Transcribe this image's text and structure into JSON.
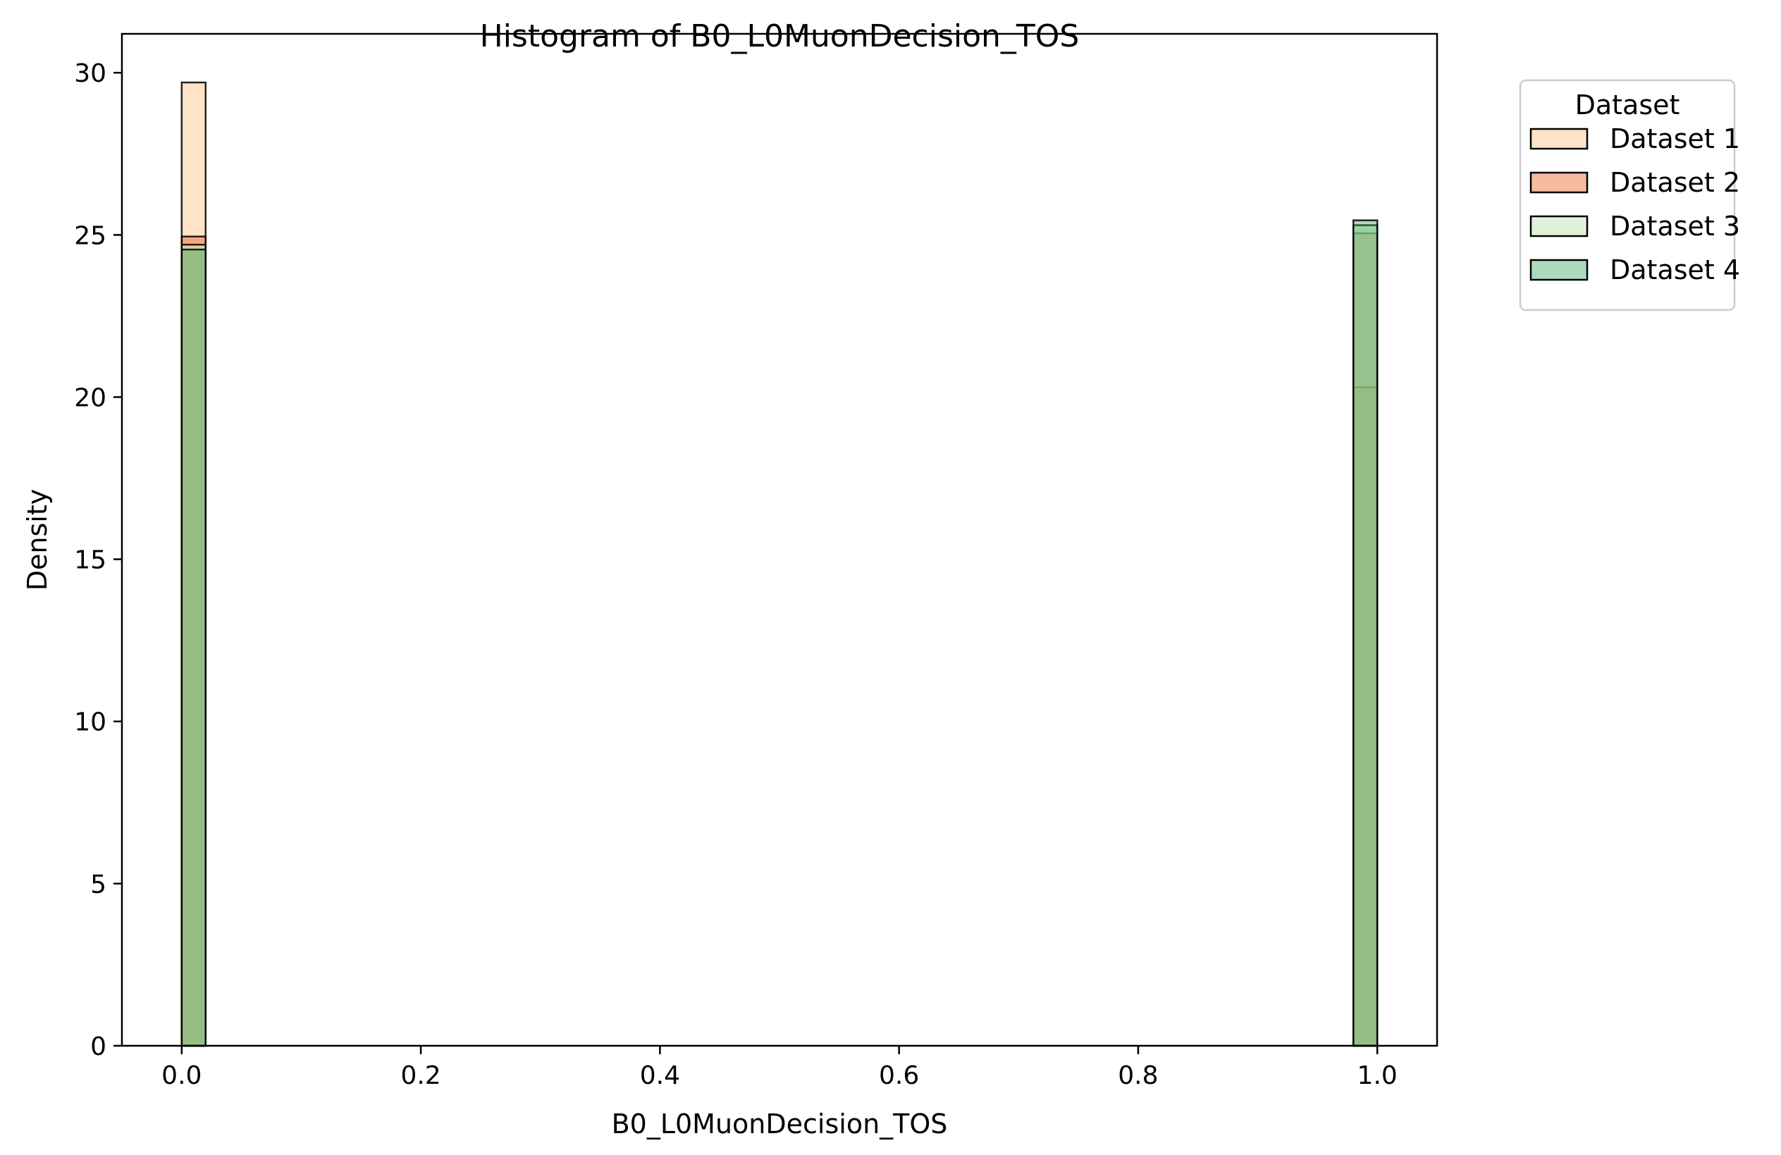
{
  "chart_data": {
    "type": "bar",
    "title": "Histogram of B0_L0MuonDecision_TOS",
    "xlabel": "B0_L0MuonDecision_TOS",
    "ylabel": "Density",
    "xlim": [
      -0.05,
      1.05
    ],
    "ylim": [
      0,
      31.2
    ],
    "x_ticks": [
      "0.0",
      "0.2",
      "0.4",
      "0.6",
      "0.8",
      "1.0"
    ],
    "x_tick_values": [
      0.0,
      0.2,
      0.4,
      0.6,
      0.8,
      1.0
    ],
    "y_ticks": [
      "0",
      "5",
      "10",
      "15",
      "20",
      "25",
      "30"
    ],
    "y_tick_values": [
      0,
      5,
      10,
      15,
      20,
      25,
      30
    ],
    "bin_edges_shown": [
      [
        0.0,
        0.02
      ],
      [
        0.98,
        1.0
      ]
    ],
    "grid": false,
    "legend": {
      "title": "Dataset",
      "placement": "outside-top-right"
    },
    "series": [
      {
        "name": "Dataset 1",
        "color": "#fdd0a2",
        "alpha": 0.6,
        "values": [
          29.7,
          20.3
        ]
      },
      {
        "name": "Dataset 2",
        "color": "#e6550d",
        "alpha": 0.4,
        "values": [
          24.95,
          25.05
        ]
      },
      {
        "name": "Dataset 3",
        "color": "#c7e9c0",
        "alpha": 0.6,
        "values": [
          24.7,
          25.3
        ]
      },
      {
        "name": "Dataset 4",
        "color": "#31a354",
        "alpha": 0.4,
        "values": [
          24.55,
          25.45
        ]
      }
    ]
  }
}
